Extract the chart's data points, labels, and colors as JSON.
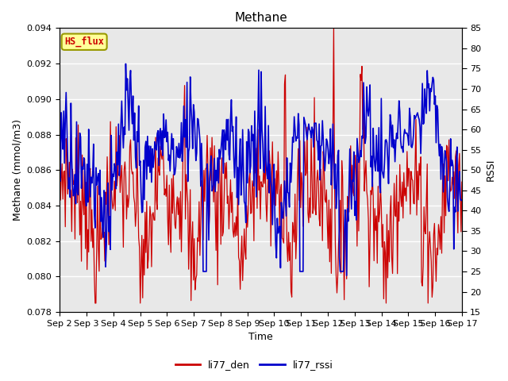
{
  "title": "Methane",
  "ylabel_left": "Methane (mmol/m3)",
  "ylabel_right": "RSSI",
  "xlabel": "Time",
  "ylim_left": [
    0.078,
    0.094
  ],
  "ylim_right": [
    15,
    85
  ],
  "yticks_left": [
    0.078,
    0.08,
    0.082,
    0.084,
    0.086,
    0.088,
    0.09,
    0.092,
    0.094
  ],
  "yticks_right": [
    15,
    20,
    25,
    30,
    35,
    40,
    45,
    50,
    55,
    60,
    65,
    70,
    75,
    80,
    85
  ],
  "bg_color": "#e8e8e8",
  "line_color_red": "#cc0000",
  "line_color_blue": "#0000cc",
  "label_box_facecolor": "#ffff99",
  "label_box_edgecolor": "#999900",
  "label_text": "HS_flux",
  "legend_label_red": "li77_den",
  "legend_label_blue": "li77_rssi",
  "tick_label_size": 8,
  "axis_label_size": 9,
  "title_size": 11,
  "legend_size": 9,
  "figsize": [
    6.4,
    4.8
  ],
  "dpi": 100
}
